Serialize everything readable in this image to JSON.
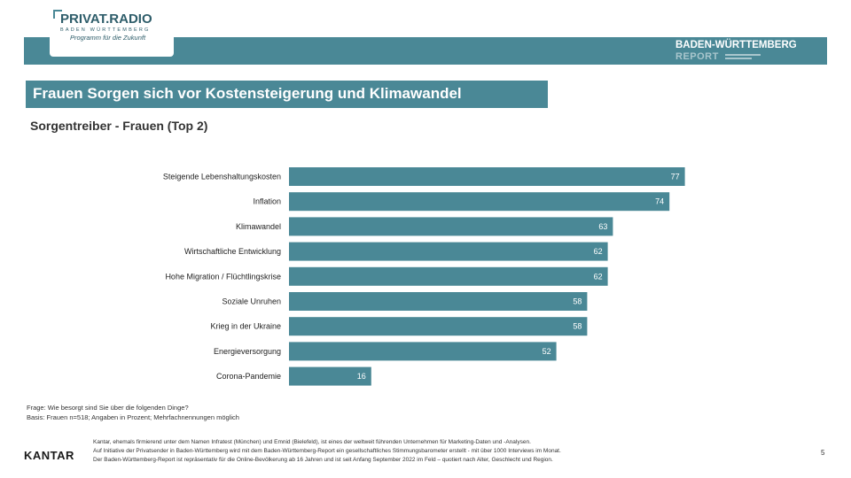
{
  "brand": {
    "name": "PRIVAT.RADIO",
    "region": "BADEN WÜRTTEMBERG",
    "tagline": "Programm für die Zukunft"
  },
  "report": {
    "title": "BADEN-WÜRTTEMBERG",
    "subtitle": "REPORT"
  },
  "slide": {
    "title": "Frauen Sorgen sich vor Kostensteigerung und Klimawandel",
    "subtitle": "Sorgentreiber - Frauen (Top 2)",
    "question": "Frage: Wie besorgt sind Sie über die folgenden Dinge?",
    "basis": "Basis: Frauen n=518; Angaben in Prozent; Mehrfachnennungen möglich",
    "page": "5"
  },
  "footer": {
    "logo": "KANTAR",
    "line1": "Kantar, ehemals firmierend unter dem Namen Infratest (München) und Emnid (Bielefeld), ist eines der weltweit führenden Unternehmen für Marketing-Daten und -Analysen.",
    "line2": "Auf Initiative der Privatsender in Baden-Württemberg wird mit dem Baden-Württemberg-Report ein gesellschaftliches Stimmungsbarometer erstellt - mit über 1000 Interviews im Monat.",
    "line3": "Der Baden-Württemberg-Report ist repräsentativ für die Online-Bevölkerung ab 16 Jahren und ist seit Anfang September 2022 im Feld – quotiert nach Alter, Geschlecht und Region."
  },
  "colors": {
    "bar": "#4a8896",
    "accent": "#4a8896"
  },
  "chart_data": {
    "type": "bar",
    "orientation": "horizontal",
    "title": "Sorgentreiber - Frauen (Top 2)",
    "categories": [
      "Steigende Lebenshaltungskosten",
      "Inflation",
      "Klimawandel",
      "Wirtschaftliche Entwicklung",
      "Hohe Migration / Flüchtlingskrise",
      "Soziale Unruhen",
      "Krieg in der Ukraine",
      "Energieversorgung",
      "Corona-Pandemie"
    ],
    "values": [
      77,
      74,
      63,
      62,
      62,
      58,
      58,
      52,
      16
    ],
    "xlim": [
      0,
      100
    ],
    "grid": false,
    "legend": "none",
    "data_labels": true
  }
}
